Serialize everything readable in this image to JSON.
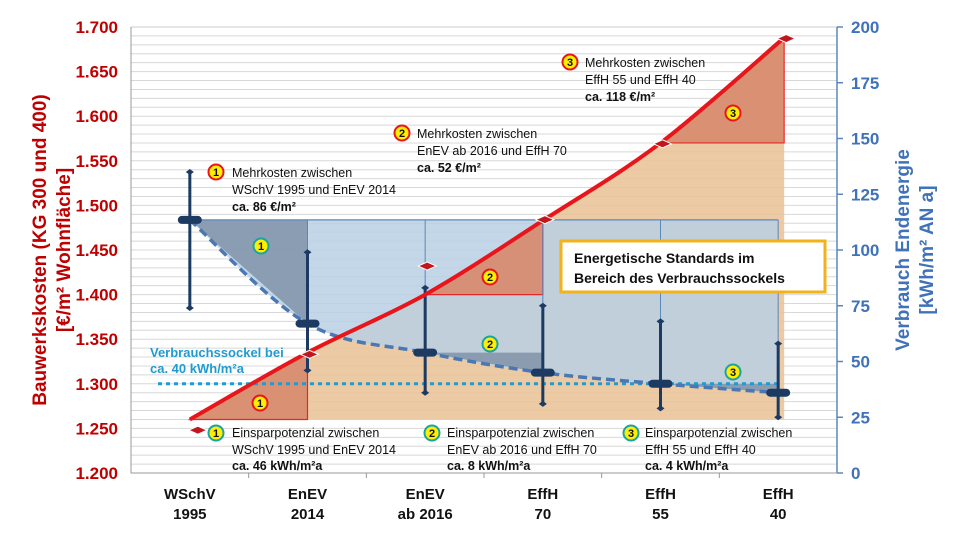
{
  "chart_data": {
    "type": "line",
    "categories": [
      [
        "WSchV",
        "1995"
      ],
      [
        "EnEV",
        "2014"
      ],
      [
        "EnEV",
        "ab 2016"
      ],
      [
        "EffH",
        "70"
      ],
      [
        "EffH",
        "55"
      ],
      [
        "EffH",
        "40"
      ]
    ],
    "left_axis": {
      "label_line1": "Bauwerkskosten (KG 300 und 400)",
      "label_line2": "[€/m² Wohnfläche]",
      "ylim": [
        1200,
        1700
      ],
      "ticks": [
        "1.200",
        "1.250",
        "1.300",
        "1.350",
        "1.400",
        "1.450",
        "1.500",
        "1.550",
        "1.600",
        "1.650",
        "1.700"
      ],
      "color": "#c00000"
    },
    "right_axis": {
      "label_line1": "Verbrauch Endenergie",
      "label_line2": "[kWh/m² AN a]",
      "ylim": [
        0,
        200
      ],
      "ticks": [
        "0",
        "25",
        "50",
        "75",
        "100",
        "125",
        "150",
        "175",
        "200"
      ],
      "color": "#3f72b8"
    },
    "series": [
      {
        "name": "Bauwerkskosten",
        "axis": "left",
        "color": "#e8151b",
        "line_values": [
          1260,
          1335,
          1400,
          1483,
          1570,
          1688
        ],
        "marker_values": [
          1248,
          1333,
          1432,
          1484,
          1569,
          1687
        ]
      },
      {
        "name": "Verbrauch Endenergie",
        "axis": "right",
        "color": "#3d6fb0",
        "values": [
          113.5,
          67,
          54,
          45,
          40,
          36
        ],
        "range_high": [
          135,
          99,
          83,
          75,
          68,
          58
        ],
        "range_low": [
          74,
          46,
          36,
          31,
          29,
          25
        ]
      }
    ],
    "baseline": {
      "label_line1": "Verbrauchssockel bei",
      "label_line2": "ca. 40 kWh/m²a",
      "value": 40,
      "color": "#1f9bd1"
    },
    "legend_box": {
      "line1": "Energetische Standards im",
      "line2": "Bereich des Verbrauchssockels",
      "border": "#f2b21a"
    },
    "cost_annotations": [
      {
        "num": "1",
        "line1": "Mehrkosten zwischen",
        "line2": "WSchV 1995 und EnEV 2014",
        "value": "ca. 86 €/m²"
      },
      {
        "num": "2",
        "line1": "Mehrkosten zwischen",
        "line2": "EnEV ab 2016 und EffH 70",
        "value": "ca. 52 €/m²"
      },
      {
        "num": "3",
        "line1": "Mehrkosten zwischen",
        "line2": "EffH 55 und EffH 40",
        "value": "ca. 118 €/m²"
      }
    ],
    "saving_annotations": [
      {
        "num": "1",
        "line1": "Einsparpotenzial zwischen",
        "line2": "WSchV 1995 und EnEV 2014",
        "value": "ca. 46 kWh/m²a"
      },
      {
        "num": "2",
        "line1": "Einsparpotenzial zwischen",
        "line2": "EnEV ab 2016 und EffH 70",
        "value": "ca. 8 kWh/m²a"
      },
      {
        "num": "3",
        "line1": "Einsparpotenzial zwischen",
        "line2": "EffH 55 und EffH 40",
        "value": "ca. 4 kWh/m²a"
      }
    ],
    "grid": true
  }
}
